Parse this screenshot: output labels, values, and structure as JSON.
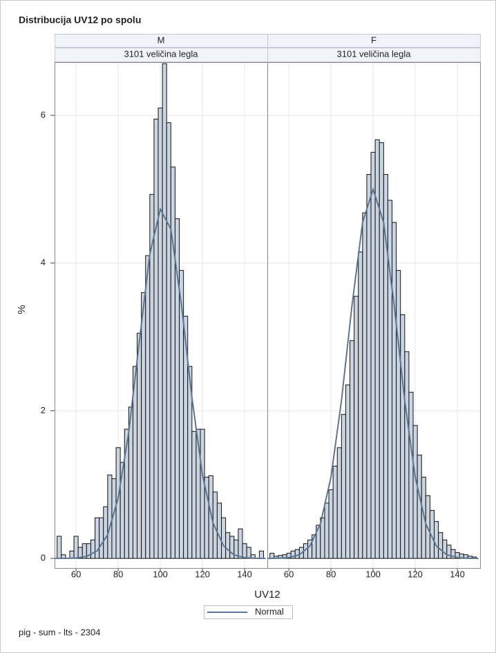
{
  "chart_data": {
    "type": "histogram",
    "title": "Distribucija UV12 po spolu",
    "x_label": "UV12",
    "y_label": "%",
    "footnote": "pig - sum - lts - 2304",
    "curve_name": "Normal",
    "bar_color": "#cbd5e1",
    "curve_color": "#5b7592",
    "grid": true,
    "xlim": [
      49.8,
      150.8
    ],
    "xticks": [
      60,
      80,
      100,
      120,
      140
    ],
    "ylim": [
      -0.13,
      6.72
    ],
    "yticks": [
      0,
      2,
      4,
      6
    ],
    "bins": [
      51,
      53,
      55,
      57,
      59,
      61,
      63,
      65,
      67,
      69,
      71,
      73,
      75,
      77,
      79,
      81,
      83,
      85,
      87,
      89,
      91,
      93,
      95,
      97,
      99,
      101,
      103,
      105,
      107,
      109,
      111,
      113,
      115,
      117,
      119,
      121,
      123,
      125,
      127,
      129,
      131,
      133,
      135,
      137,
      139,
      141,
      143,
      145,
      147,
      149
    ],
    "curve_x": [
      50,
      55,
      60,
      65,
      70,
      75,
      80,
      85,
      90,
      95,
      100,
      105,
      110,
      115,
      120,
      125,
      130,
      135,
      140,
      145,
      150
    ],
    "panels": [
      {
        "name": "M",
        "subtitle": "3101 veličina legla",
        "values": [
          0.3,
          0.05,
          0,
          0.1,
          0.3,
          0.15,
          0.2,
          0.2,
          0.25,
          0.55,
          0.55,
          0.7,
          1.13,
          1.08,
          1.5,
          1.3,
          1.75,
          2.05,
          2.6,
          3.05,
          3.6,
          4.1,
          4.93,
          5.95,
          6.1,
          6.7,
          5.9,
          5.3,
          4.6,
          3.9,
          3.28,
          2.6,
          1.72,
          1.75,
          1.75,
          1.1,
          1.12,
          0.9,
          0.75,
          0.55,
          0.35,
          0.3,
          0.25,
          0.4,
          0.2,
          0.15,
          0.05,
          0,
          0.1
        ],
        "curve_values": [
          0,
          0.001,
          0.006,
          0.027,
          0.103,
          0.32,
          0.82,
          1.71,
          2.93,
          4.12,
          4.73,
          4.46,
          3.44,
          2.18,
          1.13,
          0.48,
          0.17,
          0.047,
          0.011,
          0.002,
          0
        ]
      },
      {
        "name": "F",
        "subtitle": "3101 veličina legla",
        "values": [
          0.07,
          0.03,
          0.04,
          0.05,
          0.07,
          0.1,
          0.12,
          0.15,
          0.2,
          0.25,
          0.32,
          0.45,
          0.55,
          0.75,
          0.93,
          1.25,
          1.5,
          1.95,
          2.35,
          2.95,
          3.55,
          4.15,
          4.68,
          5.2,
          5.5,
          5.67,
          5.63,
          5.2,
          4.85,
          4.55,
          3.9,
          3.3,
          2.8,
          2.25,
          1.8,
          1.4,
          1.1,
          0.85,
          0.65,
          0.5,
          0.35,
          0.25,
          0.18,
          0.12,
          0.08,
          0.06,
          0.05,
          0.03,
          0.02
        ],
        "curve_values": [
          0.0004,
          0.0024,
          0.012,
          0.049,
          0.167,
          0.47,
          1.1,
          2.14,
          3.43,
          4.55,
          5.0,
          4.55,
          3.43,
          2.14,
          1.1,
          0.47,
          0.167,
          0.049,
          0.012,
          0.0024,
          0.0004
        ]
      }
    ]
  }
}
